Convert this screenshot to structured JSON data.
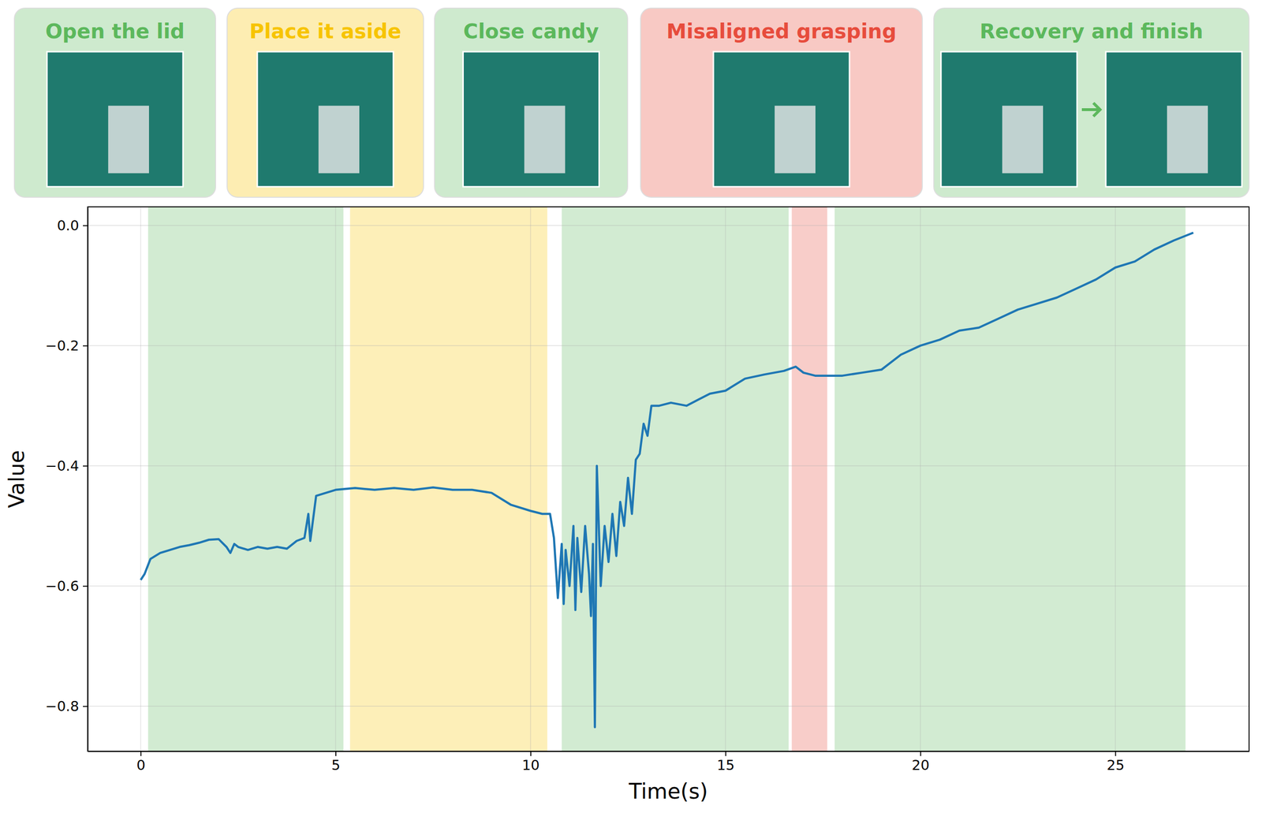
{
  "chart_data": {
    "type": "line",
    "xlabel": "Time(s)",
    "ylabel": "Value",
    "color": "#1f77b4",
    "grid": true,
    "xlim": [
      -1.36,
      28.43
    ],
    "ylim": [
      -0.875,
      0.031
    ],
    "xticks": [
      0,
      5,
      10,
      15,
      20,
      25
    ],
    "yticks": [
      {
        "value": -0.8,
        "label": "−0.8"
      },
      {
        "value": -0.6,
        "label": "−0.6"
      },
      {
        "value": -0.4,
        "label": "−0.4"
      },
      {
        "value": -0.2,
        "label": "−0.2"
      },
      {
        "value": 0,
        "label": "0.0"
      }
    ],
    "phases": [
      {
        "label": "Open the lid",
        "start": 0.19,
        "end": 5.2,
        "color": "#5cb85c"
      },
      {
        "label": "Place it aside",
        "start": 5.37,
        "end": 10.43,
        "color": "#f7c400"
      },
      {
        "label": "Close candy",
        "start": 10.8,
        "end": 16.62,
        "color": "#5cb85c"
      },
      {
        "label": "Misaligned grasping",
        "start": 16.7,
        "end": 17.61,
        "color": "#e74c3c"
      },
      {
        "label": "Recovery and finish",
        "start": 17.8,
        "end": 26.8,
        "color": "#5cb85c"
      }
    ],
    "x": [
      0,
      0.1,
      0.25,
      0.5,
      0.75,
      1.0,
      1.25,
      1.5,
      1.75,
      2.0,
      2.2,
      2.3,
      2.4,
      2.5,
      2.75,
      3.0,
      3.25,
      3.5,
      3.75,
      4.0,
      4.2,
      4.3,
      4.35,
      4.5,
      4.75,
      5.0,
      5.5,
      6.0,
      6.5,
      7.0,
      7.5,
      8.0,
      8.5,
      9.0,
      9.5,
      10.0,
      10.3,
      10.5,
      10.6,
      10.7,
      10.8,
      10.85,
      10.9,
      11.0,
      11.1,
      11.15,
      11.2,
      11.3,
      11.4,
      11.5,
      11.55,
      11.6,
      11.65,
      11.7,
      11.8,
      11.9,
      12.0,
      12.1,
      12.2,
      12.3,
      12.4,
      12.5,
      12.6,
      12.7,
      12.8,
      12.9,
      13.0,
      13.1,
      13.3,
      13.6,
      14.0,
      14.3,
      14.6,
      15.0,
      15.5,
      16.0,
      16.5,
      16.8,
      17.0,
      17.3,
      17.6,
      18.0,
      18.5,
      19.0,
      19.5,
      20.0,
      20.5,
      21.0,
      21.5,
      22.0,
      22.5,
      23.0,
      23.5,
      24.0,
      24.5,
      25.0,
      25.5,
      26.0,
      26.5,
      27.0
    ],
    "values": [
      -0.59,
      -0.58,
      -0.555,
      -0.545,
      -0.54,
      -0.535,
      -0.532,
      -0.528,
      -0.523,
      -0.522,
      -0.535,
      -0.545,
      -0.53,
      -0.535,
      -0.54,
      -0.535,
      -0.538,
      -0.535,
      -0.538,
      -0.525,
      -0.52,
      -0.48,
      -0.525,
      -0.45,
      -0.445,
      -0.44,
      -0.437,
      -0.44,
      -0.437,
      -0.44,
      -0.436,
      -0.44,
      -0.44,
      -0.445,
      -0.465,
      -0.475,
      -0.48,
      -0.48,
      -0.52,
      -0.62,
      -0.53,
      -0.63,
      -0.54,
      -0.6,
      -0.5,
      -0.64,
      -0.52,
      -0.61,
      -0.5,
      -0.58,
      -0.65,
      -0.53,
      -0.835,
      -0.4,
      -0.6,
      -0.5,
      -0.56,
      -0.48,
      -0.55,
      -0.46,
      -0.5,
      -0.42,
      -0.48,
      -0.39,
      -0.38,
      -0.33,
      -0.35,
      -0.3,
      -0.3,
      -0.295,
      -0.3,
      -0.29,
      -0.28,
      -0.275,
      -0.255,
      -0.248,
      -0.242,
      -0.235,
      -0.245,
      -0.25,
      -0.25,
      -0.25,
      -0.245,
      -0.24,
      -0.215,
      -0.2,
      -0.19,
      -0.175,
      -0.17,
      -0.155,
      -0.14,
      -0.13,
      -0.12,
      -0.105,
      -0.09,
      -0.07,
      -0.06,
      -0.04,
      -0.025,
      -0.012
    ]
  }
}
